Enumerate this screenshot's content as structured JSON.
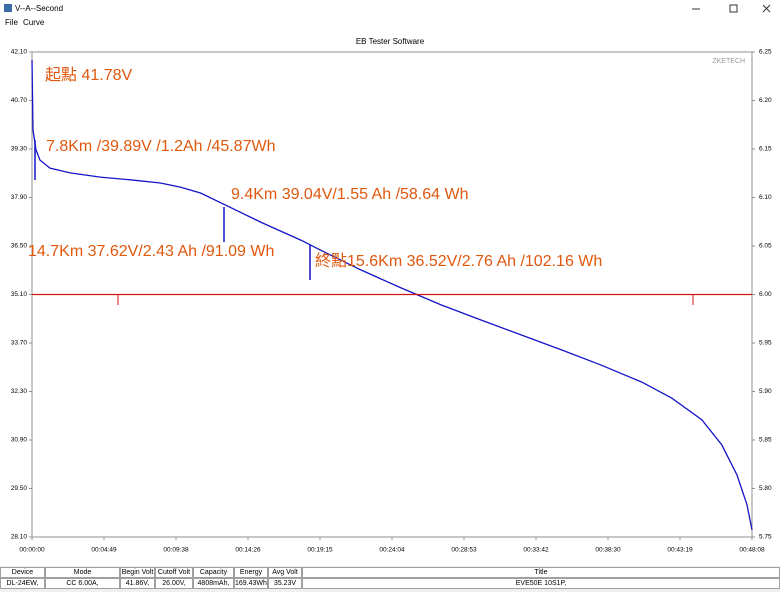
{
  "window": {
    "title": "V--A--Second",
    "menu": [
      "File",
      "Curve"
    ]
  },
  "chart_data": {
    "type": "line",
    "title": "EB Tester Software",
    "watermark": "ZKETECH",
    "xlim": [
      0,
      2888
    ],
    "xticks": [
      {
        "value": 0,
        "label": "00:00:00"
      },
      {
        "value": 288.8,
        "label": "00:04:49"
      },
      {
        "value": 577.6,
        "label": "00:09:38"
      },
      {
        "value": 866.4,
        "label": "00:14:26"
      },
      {
        "value": 1155.2,
        "label": "00:19:15"
      },
      {
        "value": 1444,
        "label": "00:24:04"
      },
      {
        "value": 1732.8,
        "label": "00:28:53"
      },
      {
        "value": 2021.6,
        "label": "00:33:42"
      },
      {
        "value": 2310.4,
        "label": "00:38:30"
      },
      {
        "value": 2599.2,
        "label": "00:43:19"
      },
      {
        "value": 2888,
        "label": "00:48:08"
      }
    ],
    "ylim": [
      28.1,
      42.1
    ],
    "yticks": [
      {
        "value": 42.1,
        "label": "42.10"
      },
      {
        "value": 40.7,
        "label": "40.70"
      },
      {
        "value": 39.3,
        "label": "39.30"
      },
      {
        "value": 37.9,
        "label": "37.90"
      },
      {
        "value": 36.5,
        "label": "36.50"
      },
      {
        "value": 35.1,
        "label": "35.10"
      },
      {
        "value": 33.7,
        "label": "33.70"
      },
      {
        "value": 32.3,
        "label": "32.30"
      },
      {
        "value": 30.9,
        "label": "30.90"
      },
      {
        "value": 29.5,
        "label": "29.50"
      },
      {
        "value": 28.1,
        "label": "28.10"
      }
    ],
    "y2lim": [
      5.75,
      6.25
    ],
    "y2ticks": [
      6.25,
      {
        "value": 6.2,
        "label": "6.20"
      },
      6.15,
      {
        "value": 6.1,
        "label": "6.10"
      },
      6.05,
      {
        "value": 6.0,
        "label": "6.00"
      },
      5.95,
      {
        "value": 5.9,
        "label": "5.90"
      },
      5.85,
      {
        "value": 5.8,
        "label": "5.80"
      },
      5.75
    ],
    "series": [
      {
        "color": "#1414c8",
        "x": [
          0,
          4,
          16,
          32,
          72,
          153,
          274,
          394,
          515,
          595,
          676,
          776,
          917,
          1078,
          1158,
          1319,
          1480,
          1641,
          1802,
          1963,
          2124,
          2284,
          2446,
          2566,
          2687,
          2767,
          2828,
          2868,
          2888
        ],
        "values": [
          41.87,
          39.85,
          39.27,
          38.98,
          38.75,
          38.61,
          38.49,
          38.41,
          38.32,
          38.2,
          38.03,
          37.68,
          37.19,
          36.67,
          36.38,
          35.81,
          35.29,
          34.8,
          34.36,
          33.93,
          33.5,
          33.06,
          32.57,
          32.11,
          31.48,
          30.76,
          29.89,
          29.03,
          28.31
        ]
      },
      {
        "color": "#d01414",
        "axis": "y2",
        "x": [
          0,
          2888
        ],
        "values": [
          6.0,
          6.0
        ]
      }
    ],
    "annotations": [
      "起點 41.78V",
      "7.8Km /39.89V /1.2Ah /45.87Wh",
      "9.4Km 39.04V/1.55 Ah /58.64 Wh",
      "14.7Km 37.62V/2.43 Ah /91.09 Wh",
      "終點15.6Km 36.52V/2.76 Ah /102.16 Wh"
    ]
  },
  "status": {
    "headers": [
      "Device",
      "Mode",
      "Begin Volt",
      "Cutoff Volt",
      "Capacity",
      "Energy",
      "Avg Volt",
      "Title"
    ],
    "values": [
      "DL-24EW,",
      "CC 6.00A,",
      "41.86V,",
      "26.00V,",
      "4808mAh,",
      "169.43Wh,",
      "35.23V",
      "EVE50E 10S1P,"
    ]
  }
}
